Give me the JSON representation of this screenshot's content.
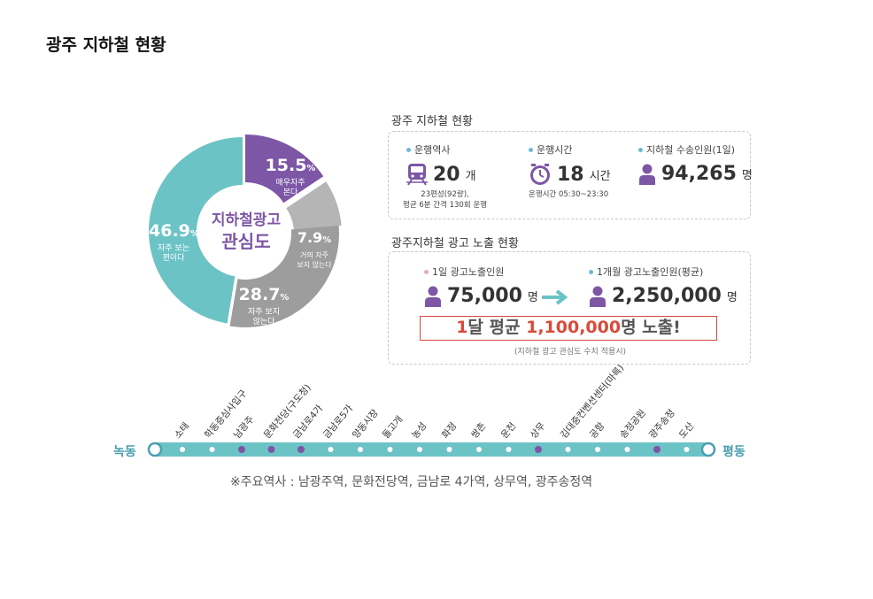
{
  "page_title": "광주 지하철 현황",
  "colors": {
    "purple": "#7d56a6",
    "teal": "#6cc3c6",
    "gray_light": "#b5b5b5",
    "gray_dark": "#9d9d9d",
    "red": "#d94a3b"
  },
  "donut": {
    "center_line1": "지하철광고",
    "center_line2": "관심도",
    "segments": [
      {
        "value": 15.5,
        "pct": "15.5",
        "pct_unit": "%",
        "desc1": "매우자주",
        "desc2": "본다",
        "color": "#7d56a6"
      },
      {
        "value": 7.9,
        "pct": "7.9",
        "pct_unit": "%",
        "desc1": "거의 자주",
        "desc2": "보지 않는다",
        "color": "#b5b5b5"
      },
      {
        "value": 28.7,
        "pct": "28.7",
        "pct_unit": "%",
        "desc1": "자주 보지",
        "desc2": "않는다",
        "color": "#9d9d9d"
      },
      {
        "value": 46.9,
        "pct": "46.9",
        "pct_unit": "%",
        "desc1": "자주 보는",
        "desc2": "편이다",
        "color": "#6cc3c6"
      }
    ]
  },
  "subway_status": {
    "heading": "광주 지하철 현황",
    "stations": {
      "label": "운행역사",
      "value": "20",
      "unit": "개",
      "sub1": "23편성(92량),",
      "sub2": "평균 6분 간격 130회 운행",
      "icon": "train-icon"
    },
    "hours": {
      "label": "운행시간",
      "value": "18",
      "unit": "시간",
      "sub1": "운행시간 05:30~23:30",
      "icon": "clock-icon"
    },
    "riders": {
      "label": "지하철 수송인원(1일)",
      "value": "94,265",
      "unit": "명",
      "icon": "person-icon"
    }
  },
  "ad_exposure": {
    "heading": "광주지하철 광고 노출 현황",
    "daily": {
      "label": "1일 광고노출인원",
      "value": "75,000",
      "unit": "명"
    },
    "monthly": {
      "label": "1개월 광고노출인원(평균)",
      "value": "2,250,000",
      "unit": "명"
    },
    "highlight": {
      "part1": "1",
      "part2": "달 평균 ",
      "part3": "1,100,000",
      "part4": "명 노출!"
    },
    "note": "(지하철 광고 관심도 수치 적용시)"
  },
  "subway_line": {
    "start_terminal": "녹동",
    "end_terminal": "평동",
    "stations": [
      {
        "name": "소태",
        "major": false
      },
      {
        "name": "학동증심사입구",
        "major": false
      },
      {
        "name": "남광주",
        "major": true
      },
      {
        "name": "문화전당(구도청)",
        "major": true
      },
      {
        "name": "금남로4가",
        "major": true
      },
      {
        "name": "금남로5가",
        "major": false
      },
      {
        "name": "양동시장",
        "major": false
      },
      {
        "name": "돌고개",
        "major": false
      },
      {
        "name": "농성",
        "major": false
      },
      {
        "name": "화정",
        "major": false
      },
      {
        "name": "쌍촌",
        "major": false
      },
      {
        "name": "운천",
        "major": false
      },
      {
        "name": "상무",
        "major": true
      },
      {
        "name": "김대중컨벤션센터(마륵)",
        "major": false
      },
      {
        "name": "공항",
        "major": false
      },
      {
        "name": "송정공원",
        "major": false
      },
      {
        "name": "광주송정",
        "major": true
      },
      {
        "name": "도산",
        "major": false
      }
    ],
    "footnote": "※주요역사 : 남광주역, 문화전당역, 금남로 4가역, 상무역, 광주송정역"
  }
}
